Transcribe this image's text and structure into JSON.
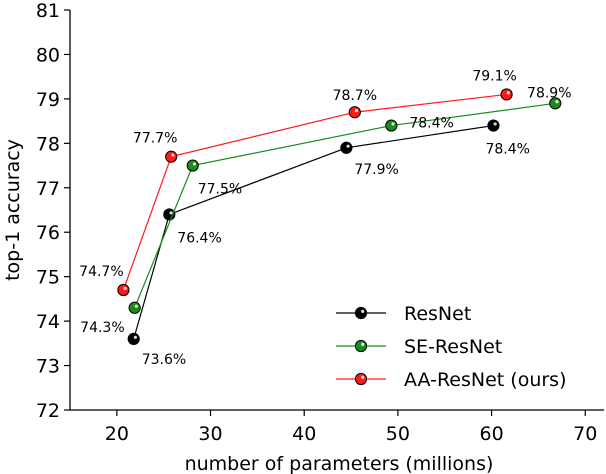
{
  "chart_data": {
    "type": "line",
    "title": "",
    "xlabel": "number of parameters (millions)",
    "ylabel": "top-1 accuracy",
    "xlim": [
      15,
      72
    ],
    "ylim": [
      72,
      81
    ],
    "xticks": [
      20,
      30,
      40,
      50,
      60,
      70
    ],
    "yticks": [
      72,
      73,
      74,
      75,
      76,
      77,
      78,
      79,
      80,
      81
    ],
    "grid": false,
    "legend_position": "bottom-right",
    "series": [
      {
        "name": "ResNet",
        "color": "#000000",
        "x": [
          21.8,
          25.6,
          44.5,
          60.2
        ],
        "y": [
          73.6,
          76.4,
          77.9,
          78.4
        ],
        "labels": [
          "73.6%",
          "76.4%",
          "77.9%",
          "78.4%"
        ]
      },
      {
        "name": "SE-ResNet",
        "color": "#1a8c1a",
        "x": [
          21.9,
          28.1,
          49.3,
          66.8
        ],
        "y": [
          74.3,
          77.5,
          78.4,
          78.9
        ],
        "labels": [
          "74.3%",
          "77.5%",
          "78.4%",
          "78.9%"
        ]
      },
      {
        "name": "AA-ResNet (ours)",
        "color": "#ff1a1a",
        "x": [
          20.7,
          25.8,
          45.4,
          61.6
        ],
        "y": [
          74.7,
          77.7,
          78.7,
          79.1
        ],
        "labels": [
          "74.7%",
          "77.7%",
          "78.7%",
          "79.1%"
        ]
      }
    ]
  }
}
